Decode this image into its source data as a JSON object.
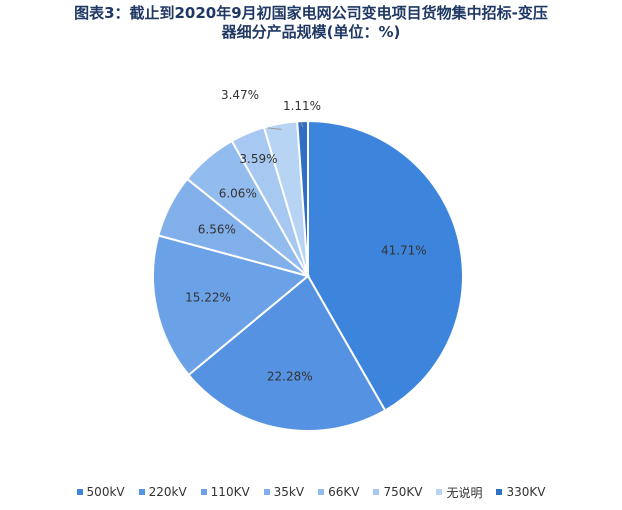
{
  "title_lines": [
    "图表3：截止到2020年9月初国家电网公司变电项目货物集中招标-变压",
    "器细分产品规模(单位：%)"
  ],
  "chart_data": {
    "type": "pie",
    "unit": "%",
    "categories": [
      "500kV",
      "220kV",
      "110KV",
      "35kV",
      "66KV",
      "750KV",
      "无说明",
      "330KV"
    ],
    "values": [
      41.71,
      22.28,
      15.22,
      6.56,
      6.06,
      3.59,
      3.47,
      1.11
    ],
    "value_labels": [
      "41.71%",
      "22.28%",
      "15.22%",
      "6.56%",
      "6.06%",
      "3.59%",
      "3.47%",
      "1.11%"
    ],
    "colors": [
      "#3d85dc",
      "#5593e2",
      "#6aa1e7",
      "#80afea",
      "#93bcee",
      "#a6c8f1",
      "#b8d4f4",
      "#2f6fc4"
    ],
    "legend_position": "bottom",
    "start_angle": "12 o'clock, clockwise"
  }
}
